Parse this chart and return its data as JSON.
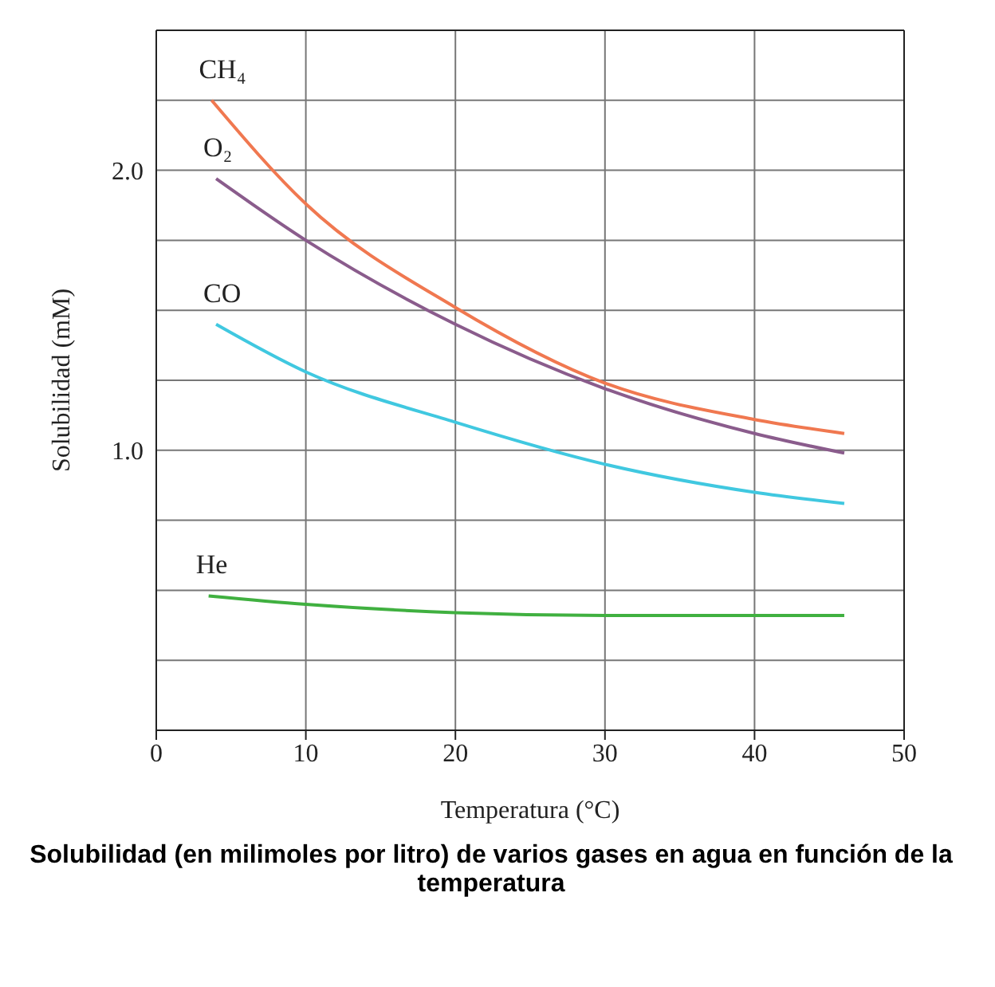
{
  "chart_data": {
    "type": "line",
    "title": "Solubilidad (en milimoles por litro) de varios gases en agua en función de la temperatura",
    "xlabel": "Temperatura (°C)",
    "ylabel": "Solubilidad (mM)",
    "xlim": [
      0,
      50
    ],
    "xticks": [
      0,
      10,
      20,
      30,
      40,
      50
    ],
    "ylim": [
      0,
      2.5
    ],
    "yticks": [
      {
        "value": 0.25,
        "label": null
      },
      {
        "value": 0.5,
        "label": null
      },
      {
        "value": 0.75,
        "label": null
      },
      {
        "value": 1,
        "label": "1.0"
      },
      {
        "value": 1.25,
        "label": null
      },
      {
        "value": 1.5,
        "label": null
      },
      {
        "value": 1.75,
        "label": null
      },
      {
        "value": 2,
        "label": "2.0"
      },
      {
        "value": 2.25,
        "label": null
      }
    ],
    "grid": true,
    "marker": "none",
    "line_style": "solid",
    "series": [
      {
        "name": "CH₄",
        "color": "#f07850",
        "x": [
          3.7,
          10,
          20,
          30,
          40,
          46
        ],
        "values": [
          2.25,
          1.88,
          1.51,
          1.24,
          1.11,
          1.06
        ]
      },
      {
        "name": "O₂",
        "color": "#8a5c8c",
        "x": [
          4,
          10,
          20,
          30,
          40,
          46
        ],
        "values": [
          1.97,
          1.75,
          1.45,
          1.22,
          1.06,
          0.99
        ]
      },
      {
        "name": "CO",
        "color": "#40c8e0",
        "x": [
          4,
          10,
          20,
          30,
          40,
          46
        ],
        "values": [
          1.45,
          1.28,
          1.1,
          0.95,
          0.85,
          0.81
        ]
      },
      {
        "name": "He",
        "color": "#40b040",
        "x": [
          3.5,
          10,
          20,
          30,
          46
        ],
        "values": [
          0.48,
          0.45,
          0.42,
          0.41,
          0.41
        ]
      }
    ]
  }
}
